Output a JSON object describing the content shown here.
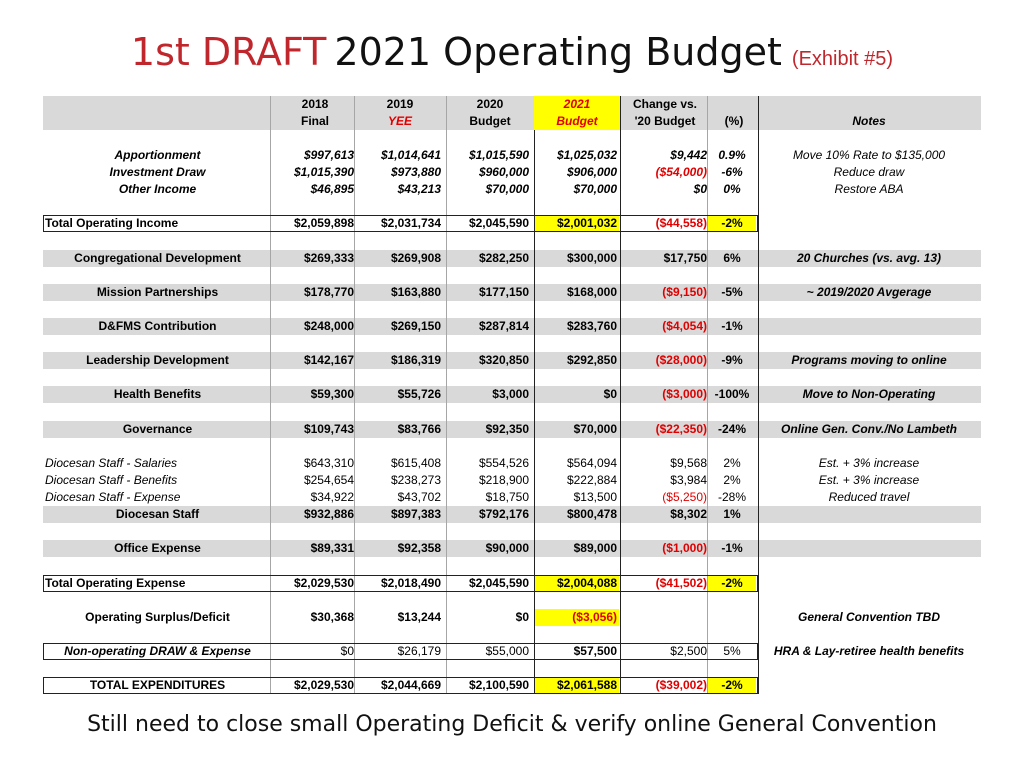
{
  "title": {
    "draft": "1st DRAFT",
    "main": "2021 Operating Budget",
    "exhibit": "(Exhibit #5)"
  },
  "columns": {
    "c2018": {
      "line1": "2018",
      "line2": "Final"
    },
    "c2019": {
      "line1": "2019",
      "line2": "YEE"
    },
    "c2020": {
      "line1": "2020",
      "line2": "Budget"
    },
    "c2021": {
      "line1": "2021",
      "line2": "Budget"
    },
    "change": {
      "line1": "Change vs.",
      "line2": "'20 Budget"
    },
    "pct": "(%)",
    "notes": "Notes"
  },
  "colors": {
    "accent_red": "#c0272d",
    "highlight": "#ffff00",
    "negative": "#e00000",
    "band": "#d9d9d9"
  },
  "rows": {
    "apportionment": {
      "label": "Apportionment",
      "v2018": "$997,613",
      "v2019": "$1,014,641",
      "v2020": "$1,015,590",
      "v2021": "$1,025,032",
      "change": "$9,442",
      "pct": "0.9%",
      "note": "Move 10% Rate to $135,000"
    },
    "investment_draw": {
      "label": "Investment Draw",
      "v2018": "$1,015,390",
      "v2019": "$973,880",
      "v2020": "$960,000",
      "v2021": "$906,000",
      "change": "($54,000)",
      "pct": "-6%",
      "note": "Reduce draw"
    },
    "other_income": {
      "label": "Other Income",
      "v2018": "$46,895",
      "v2019": "$43,213",
      "v2020": "$70,000",
      "v2021": "$70,000",
      "change": "$0",
      "pct": "0%",
      "note": "Restore  ABA"
    },
    "total_income": {
      "label": "Total Operating Income",
      "v2018": "$2,059,898",
      "v2019": "$2,031,734",
      "v2020": "$2,045,590",
      "v2021": "$2,001,032",
      "change": "($44,558)",
      "pct": "-2%",
      "note": ""
    },
    "congregational": {
      "label": "Congregational Development",
      "v2018": "$269,333",
      "v2019": "$269,908",
      "v2020": "$282,250",
      "v2021": "$300,000",
      "change": "$17,750",
      "pct": "6%",
      "note": "20 Churches (vs. avg. 13)"
    },
    "mission": {
      "label": "Mission Partnerships",
      "v2018": "$178,770",
      "v2019": "$163,880",
      "v2020": "$177,150",
      "v2021": "$168,000",
      "change": "($9,150)",
      "pct": "-5%",
      "note": "~ 2019/2020 Avgerage"
    },
    "dfms": {
      "label": "D&FMS Contribution",
      "v2018": "$248,000",
      "v2019": "$269,150",
      "v2020": "$287,814",
      "v2021": "$283,760",
      "change": "($4,054)",
      "pct": "-1%",
      "note": ""
    },
    "leadership": {
      "label": "Leadership Development",
      "v2018": "$142,167",
      "v2019": "$186,319",
      "v2020": "$320,850",
      "v2021": "$292,850",
      "change": "($28,000)",
      "pct": "-9%",
      "note": "Programs moving to online"
    },
    "health": {
      "label": "Health Benefits",
      "v2018": "$59,300",
      "v2019": "$55,726",
      "v2020": "$3,000",
      "v2021": "$0",
      "change": "($3,000)",
      "pct": "-100%",
      "note": "Move to Non-Operating"
    },
    "governance": {
      "label": "Governance",
      "v2018": "$109,743",
      "v2019": "$83,766",
      "v2020": "$92,350",
      "v2021": "$70,000",
      "change": "($22,350)",
      "pct": "-24%",
      "note": "Online Gen. Conv./No Lambeth"
    },
    "staff_salaries": {
      "label": "Diocesan Staff - Salaries",
      "v2018": "$643,310",
      "v2019": "$615,408",
      "v2020": "$554,526",
      "v2021": "$564,094",
      "change": "$9,568",
      "pct": "2%",
      "note": "Est. + 3% increase"
    },
    "staff_benefits": {
      "label": "Diocesan Staff - Benefits",
      "v2018": "$254,654",
      "v2019": "$238,273",
      "v2020": "$218,900",
      "v2021": "$222,884",
      "change": "$3,984",
      "pct": "2%",
      "note": "Est. + 3% increase"
    },
    "staff_expense": {
      "label": "Diocesan Staff - Expense",
      "v2018": "$34,922",
      "v2019": "$43,702",
      "v2020": "$18,750",
      "v2021": "$13,500",
      "change": "($5,250)",
      "pct": "-28%",
      "note": "Reduced travel"
    },
    "staff_total": {
      "label": "Diocesan Staff",
      "v2018": "$932,886",
      "v2019": "$897,383",
      "v2020": "$792,176",
      "v2021": "$800,478",
      "change": "$8,302",
      "pct": "1%",
      "note": ""
    },
    "office": {
      "label": "Office Expense",
      "v2018": "$89,331",
      "v2019": "$92,358",
      "v2020": "$90,000",
      "v2021": "$89,000",
      "change": "($1,000)",
      "pct": "-1%",
      "note": ""
    },
    "total_expense": {
      "label": "Total Operating Expense",
      "v2018": "$2,029,530",
      "v2019": "$2,018,490",
      "v2020": "$2,045,590",
      "v2021": "$2,004,088",
      "change": "($41,502)",
      "pct": "-2%",
      "note": ""
    },
    "surplus": {
      "label": "Operating Surplus/Deficit",
      "v2018": "$30,368",
      "v2019": "$13,244",
      "v2020": "$0",
      "v2021": "($3,056)",
      "change": "",
      "pct": "",
      "note": "General Convention TBD"
    },
    "nonop": {
      "label": "Non-operating DRAW & Expense",
      "v2018": "$0",
      "v2019": "$26,179",
      "v2020": "$55,000",
      "v2021": "$57,500",
      "change": "$2,500",
      "pct": "5%",
      "note": "HRA & Lay-retiree health benefits"
    },
    "total_expenditures": {
      "label": "TOTAL EXPENDITURES",
      "v2018": "$2,029,530",
      "v2019": "$2,044,669",
      "v2020": "$2,100,590",
      "v2021": "$2,061,588",
      "change": "($39,002)",
      "pct": "-2%",
      "note": ""
    }
  },
  "footer": "Still need to close small Operating Deficit & verify online General Convention"
}
